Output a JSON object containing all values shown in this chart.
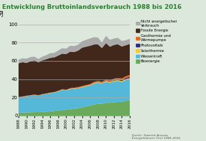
{
  "title": "Entwicklung Bruttoinlandsverbrauch 1988 bis 2016",
  "ylabel": "PJ",
  "background_color": "#dde8dd",
  "years": [
    1988,
    1989,
    1990,
    1991,
    1992,
    1993,
    1994,
    1995,
    1996,
    1997,
    1998,
    1999,
    2000,
    2001,
    2002,
    2003,
    2004,
    2005,
    2006,
    2007,
    2008,
    2009,
    2010,
    2011,
    2012,
    2013,
    2014,
    2015,
    2016
  ],
  "series": {
    "Bioenergie": [
      3,
      3.2,
      3.4,
      3.5,
      3.6,
      3.8,
      4.0,
      4.2,
      4.5,
      5,
      5.5,
      6,
      6.5,
      7,
      7.5,
      8,
      9,
      10,
      11,
      12,
      13,
      13,
      14,
      14,
      14.5,
      15,
      15,
      16,
      17
    ],
    "Wasserkraft": [
      17,
      17.5,
      18,
      18.5,
      19,
      18,
      19,
      19.5,
      20,
      20,
      21,
      22,
      21,
      22,
      22,
      22,
      22,
      22,
      22,
      23,
      23,
      22,
      23,
      22,
      23,
      23,
      22,
      23,
      23
    ],
    "Solarthermie": [
      0.1,
      0.1,
      0.1,
      0.1,
      0.2,
      0.2,
      0.2,
      0.2,
      0.3,
      0.3,
      0.3,
      0.3,
      0.3,
      0.4,
      0.4,
      0.4,
      0.5,
      0.5,
      0.5,
      0.6,
      0.6,
      0.6,
      0.7,
      0.7,
      0.8,
      0.8,
      0.9,
      1.0,
      1.0
    ],
    "Photovoltaik": [
      0,
      0,
      0,
      0,
      0,
      0,
      0,
      0,
      0,
      0,
      0,
      0,
      0,
      0,
      0,
      0,
      0,
      0,
      0,
      0.1,
      0.1,
      0.1,
      0.2,
      0.3,
      0.5,
      0.7,
      1.0,
      1.2,
      1.5
    ],
    "Geothermie und Waermepumpe": [
      0.2,
      0.2,
      0.3,
      0.3,
      0.3,
      0.3,
      0.4,
      0.4,
      0.5,
      0.5,
      0.5,
      0.6,
      0.6,
      0.7,
      0.7,
      0.8,
      0.9,
      1.0,
      1.0,
      1.2,
      1.3,
      1.3,
      1.5,
      1.5,
      1.6,
      1.7,
      1.8,
      1.9,
      2.0
    ],
    "Fossile Energie": [
      37,
      37.5,
      36,
      37,
      37.5,
      36,
      37,
      37.5,
      38,
      38,
      38.5,
      39,
      39,
      40,
      39,
      40,
      42,
      42,
      42,
      41,
      40,
      37,
      40,
      37,
      37,
      37,
      35,
      34,
      34
    ],
    "Nicht energetischer Verbrauch": [
      4,
      4.2,
      4.5,
      4.7,
      4.0,
      3.8,
      4.0,
      4.5,
      5,
      5,
      5.5,
      6,
      6,
      6.5,
      6.5,
      6.5,
      7,
      7.5,
      8,
      8,
      7.5,
      6,
      8,
      7.5,
      7,
      7,
      6,
      5.5,
      5.5
    ]
  },
  "colors": {
    "Bioenergie": "#6aaa5a",
    "Wasserkraft": "#55b8d8",
    "Solarthermie": "#f0cc30",
    "Photovoltaik": "#352878",
    "Geothermie und Waermepumpe": "#e06820",
    "Fossile Energie": "#42281a",
    "Nicht energetischer Verbrauch": "#aaaaaa"
  },
  "legend_labels": {
    "Nicht energetischer Verbrauch": "Nicht energetischer\nVerbrauch",
    "Fossile Energie": "Fossile Energie",
    "Geothermie und Waermepumpe": "Geothermie und\nWärmepumpe",
    "Photovoltaik": "Photovoltaik",
    "Solarthermie": "Solarthermie",
    "Wasserkraft": "Wasserkraft",
    "Bioenergie": "Bioenergie"
  },
  "ylim": [
    0,
    105
  ],
  "yticks": [
    0,
    20,
    40,
    60,
    80,
    100
  ],
  "source_text": "Quelle: Statistik Austria,\nEnergieblanzen Tirol 1988–2016",
  "title_color": "#2e7d32",
  "grid_color": "#aaaaaa"
}
